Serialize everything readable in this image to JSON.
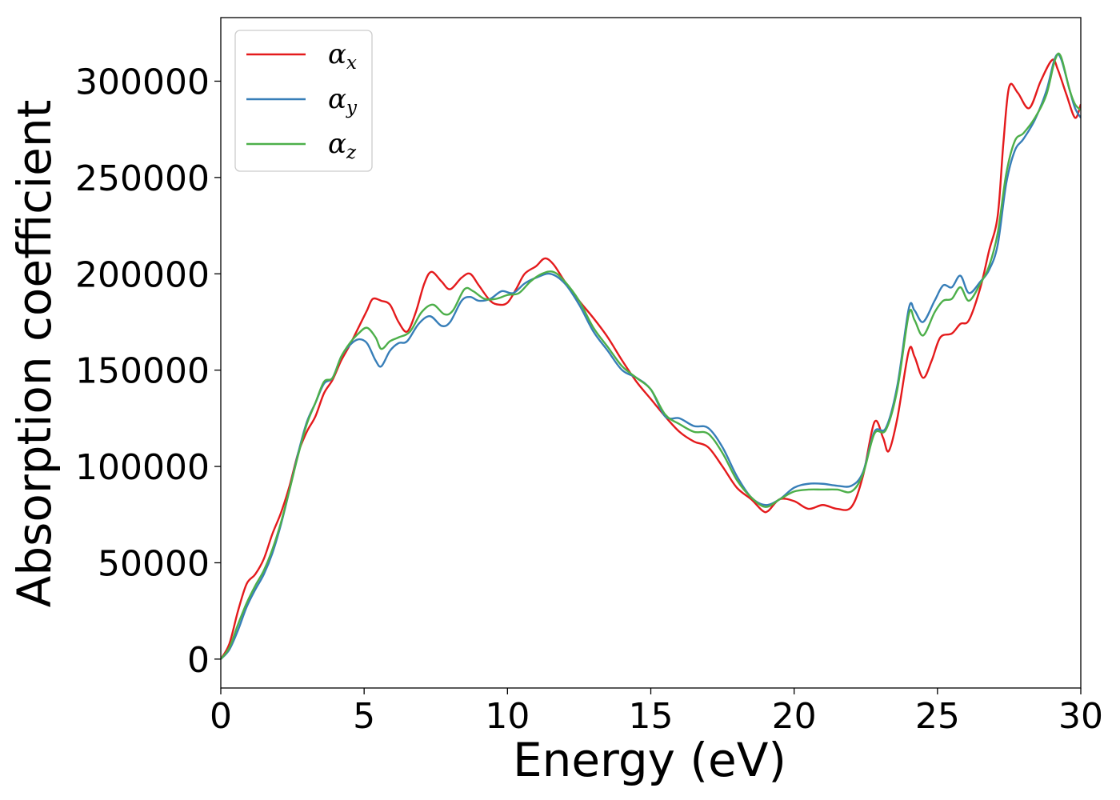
{
  "chart_data": {
    "type": "line",
    "xlabel": "Energy (eV)",
    "ylabel": "Absorption coefficient",
    "xlim": [
      0,
      30
    ],
    "ylim": [
      -15000,
      333000
    ],
    "xticks": [
      0,
      5,
      10,
      15,
      20,
      25,
      30
    ],
    "yticks": [
      0,
      50000,
      100000,
      150000,
      200000,
      250000,
      300000
    ],
    "legend_position": "top-left",
    "grid": false,
    "series": [
      {
        "name": "α",
        "subscript": "x",
        "color": "#e41a1c",
        "points": [
          [
            0,
            0
          ],
          [
            0.3,
            8000
          ],
          [
            0.6,
            25000
          ],
          [
            0.9,
            39000
          ],
          [
            1.2,
            44000
          ],
          [
            1.5,
            52000
          ],
          [
            1.8,
            65000
          ],
          [
            2.1,
            76000
          ],
          [
            2.4,
            90000
          ],
          [
            2.7,
            107000
          ],
          [
            3.0,
            118000
          ],
          [
            3.3,
            126000
          ],
          [
            3.6,
            138000
          ],
          [
            3.9,
            145000
          ],
          [
            4.2,
            155000
          ],
          [
            4.5,
            163000
          ],
          [
            4.8,
            172000
          ],
          [
            5.1,
            181000
          ],
          [
            5.3,
            187000
          ],
          [
            5.6,
            186000
          ],
          [
            5.9,
            184000
          ],
          [
            6.2,
            175000
          ],
          [
            6.5,
            170000
          ],
          [
            6.8,
            180000
          ],
          [
            7.1,
            195000
          ],
          [
            7.35,
            201000
          ],
          [
            7.7,
            196000
          ],
          [
            8.0,
            192000
          ],
          [
            8.4,
            198000
          ],
          [
            8.7,
            200000
          ],
          [
            9.0,
            194000
          ],
          [
            9.4,
            186000
          ],
          [
            9.7,
            184000
          ],
          [
            10.0,
            185000
          ],
          [
            10.3,
            192000
          ],
          [
            10.6,
            200000
          ],
          [
            11.0,
            204000
          ],
          [
            11.3,
            208000
          ],
          [
            11.6,
            205000
          ],
          [
            12.0,
            196000
          ],
          [
            12.5,
            186000
          ],
          [
            13.0,
            177000
          ],
          [
            13.5,
            167000
          ],
          [
            14.0,
            155000
          ],
          [
            14.5,
            144000
          ],
          [
            15.0,
            135000
          ],
          [
            15.5,
            126000
          ],
          [
            16.0,
            118000
          ],
          [
            16.5,
            113000
          ],
          [
            17.0,
            110000
          ],
          [
            17.5,
            100000
          ],
          [
            18.0,
            89000
          ],
          [
            18.5,
            83000
          ],
          [
            18.9,
            77000
          ],
          [
            19.1,
            77000
          ],
          [
            19.5,
            83000
          ],
          [
            20.0,
            82000
          ],
          [
            20.5,
            78000
          ],
          [
            21.0,
            80000
          ],
          [
            21.5,
            78000
          ],
          [
            22.0,
            79000
          ],
          [
            22.4,
            95000
          ],
          [
            22.8,
            123000
          ],
          [
            23.1,
            115000
          ],
          [
            23.3,
            108000
          ],
          [
            23.6,
            125000
          ],
          [
            24.0,
            160000
          ],
          [
            24.2,
            157000
          ],
          [
            24.5,
            146000
          ],
          [
            24.8,
            155000
          ],
          [
            25.1,
            167000
          ],
          [
            25.5,
            169000
          ],
          [
            25.8,
            174000
          ],
          [
            26.1,
            176000
          ],
          [
            26.5,
            193000
          ],
          [
            26.8,
            212000
          ],
          [
            27.1,
            230000
          ],
          [
            27.3,
            268000
          ],
          [
            27.5,
            297000
          ],
          [
            27.8,
            294000
          ],
          [
            28.2,
            286000
          ],
          [
            28.6,
            300000
          ],
          [
            29.0,
            311000
          ],
          [
            29.2,
            306000
          ],
          [
            29.5,
            293000
          ],
          [
            29.8,
            281000
          ],
          [
            30.0,
            288000
          ]
        ]
      },
      {
        "name": "α",
        "subscript": "y",
        "color": "#377eb8",
        "points": [
          [
            0,
            0
          ],
          [
            0.3,
            5000
          ],
          [
            0.6,
            15000
          ],
          [
            0.9,
            27000
          ],
          [
            1.2,
            36000
          ],
          [
            1.5,
            44000
          ],
          [
            1.8,
            55000
          ],
          [
            2.1,
            70000
          ],
          [
            2.4,
            88000
          ],
          [
            2.7,
            107000
          ],
          [
            3.0,
            123000
          ],
          [
            3.3,
            133000
          ],
          [
            3.6,
            143000
          ],
          [
            3.9,
            146000
          ],
          [
            4.2,
            157000
          ],
          [
            4.5,
            163000
          ],
          [
            4.8,
            166000
          ],
          [
            5.1,
            164000
          ],
          [
            5.4,
            155000
          ],
          [
            5.6,
            152000
          ],
          [
            5.9,
            160000
          ],
          [
            6.2,
            164000
          ],
          [
            6.5,
            165000
          ],
          [
            6.9,
            174000
          ],
          [
            7.3,
            178000
          ],
          [
            7.7,
            173000
          ],
          [
            8.0,
            175000
          ],
          [
            8.4,
            186000
          ],
          [
            8.7,
            188000
          ],
          [
            9.0,
            186000
          ],
          [
            9.4,
            187000
          ],
          [
            9.8,
            191000
          ],
          [
            10.2,
            190000
          ],
          [
            10.6,
            195000
          ],
          [
            11.0,
            198000
          ],
          [
            11.5,
            200000
          ],
          [
            12.0,
            195000
          ],
          [
            12.5,
            184000
          ],
          [
            13.0,
            170000
          ],
          [
            13.5,
            160000
          ],
          [
            14.0,
            150000
          ],
          [
            14.5,
            146000
          ],
          [
            15.0,
            140000
          ],
          [
            15.5,
            126000
          ],
          [
            16.0,
            125000
          ],
          [
            16.5,
            121000
          ],
          [
            17.0,
            120000
          ],
          [
            17.5,
            110000
          ],
          [
            18.0,
            95000
          ],
          [
            18.5,
            84000
          ],
          [
            19.0,
            80000
          ],
          [
            19.5,
            83000
          ],
          [
            20.0,
            89000
          ],
          [
            20.5,
            91000
          ],
          [
            21.0,
            91000
          ],
          [
            21.5,
            90000
          ],
          [
            22.0,
            90000
          ],
          [
            22.4,
            97000
          ],
          [
            22.8,
            118000
          ],
          [
            23.2,
            120000
          ],
          [
            23.6,
            142000
          ],
          [
            24.0,
            182000
          ],
          [
            24.2,
            181000
          ],
          [
            24.5,
            175000
          ],
          [
            24.9,
            186000
          ],
          [
            25.2,
            194000
          ],
          [
            25.5,
            193000
          ],
          [
            25.8,
            199000
          ],
          [
            26.1,
            190000
          ],
          [
            26.5,
            196000
          ],
          [
            26.8,
            202000
          ],
          [
            27.1,
            215000
          ],
          [
            27.4,
            247000
          ],
          [
            27.7,
            264000
          ],
          [
            28.0,
            270000
          ],
          [
            28.4,
            280000
          ],
          [
            28.8,
            295000
          ],
          [
            29.1,
            312000
          ],
          [
            29.3,
            312000
          ],
          [
            29.6,
            296000
          ],
          [
            29.8,
            286000
          ],
          [
            30.0,
            281000
          ]
        ]
      },
      {
        "name": "α",
        "subscript": "z",
        "color": "#4daf4a",
        "points": [
          [
            0,
            0
          ],
          [
            0.3,
            6000
          ],
          [
            0.6,
            18000
          ],
          [
            0.9,
            29000
          ],
          [
            1.2,
            38000
          ],
          [
            1.5,
            46000
          ],
          [
            1.8,
            57000
          ],
          [
            2.1,
            71000
          ],
          [
            2.4,
            88000
          ],
          [
            2.7,
            106000
          ],
          [
            3.0,
            122000
          ],
          [
            3.3,
            133000
          ],
          [
            3.6,
            144000
          ],
          [
            3.9,
            146000
          ],
          [
            4.2,
            157000
          ],
          [
            4.5,
            164000
          ],
          [
            4.8,
            169000
          ],
          [
            5.1,
            172000
          ],
          [
            5.4,
            167000
          ],
          [
            5.6,
            161000
          ],
          [
            5.9,
            165000
          ],
          [
            6.2,
            167000
          ],
          [
            6.6,
            170000
          ],
          [
            7.0,
            180000
          ],
          [
            7.4,
            184000
          ],
          [
            7.8,
            179000
          ],
          [
            8.1,
            181000
          ],
          [
            8.5,
            192000
          ],
          [
            8.8,
            191000
          ],
          [
            9.2,
            187000
          ],
          [
            9.6,
            187000
          ],
          [
            10.0,
            189000
          ],
          [
            10.4,
            190000
          ],
          [
            10.8,
            196000
          ],
          [
            11.2,
            200000
          ],
          [
            11.6,
            201000
          ],
          [
            12.0,
            196000
          ],
          [
            12.5,
            186000
          ],
          [
            13.0,
            172000
          ],
          [
            13.5,
            162000
          ],
          [
            14.0,
            152000
          ],
          [
            14.5,
            146000
          ],
          [
            15.0,
            140000
          ],
          [
            15.5,
            127000
          ],
          [
            16.0,
            122000
          ],
          [
            16.5,
            118000
          ],
          [
            17.0,
            117000
          ],
          [
            17.5,
            107000
          ],
          [
            18.0,
            93000
          ],
          [
            18.5,
            84000
          ],
          [
            19.0,
            79000
          ],
          [
            19.5,
            83000
          ],
          [
            20.0,
            87000
          ],
          [
            20.5,
            88000
          ],
          [
            21.0,
            88000
          ],
          [
            21.5,
            88000
          ],
          [
            22.0,
            87000
          ],
          [
            22.4,
            96000
          ],
          [
            22.8,
            117000
          ],
          [
            23.2,
            119000
          ],
          [
            23.6,
            140000
          ],
          [
            24.0,
            179000
          ],
          [
            24.2,
            176000
          ],
          [
            24.5,
            168000
          ],
          [
            24.9,
            180000
          ],
          [
            25.2,
            186000
          ],
          [
            25.5,
            187000
          ],
          [
            25.8,
            193000
          ],
          [
            26.1,
            186000
          ],
          [
            26.5,
            195000
          ],
          [
            26.8,
            204000
          ],
          [
            27.1,
            221000
          ],
          [
            27.4,
            252000
          ],
          [
            27.7,
            269000
          ],
          [
            28.0,
            273000
          ],
          [
            28.4,
            281000
          ],
          [
            28.8,
            293000
          ],
          [
            29.1,
            311000
          ],
          [
            29.3,
            313000
          ],
          [
            29.6,
            296000
          ],
          [
            29.8,
            288000
          ],
          [
            30.0,
            285000
          ]
        ]
      }
    ]
  }
}
